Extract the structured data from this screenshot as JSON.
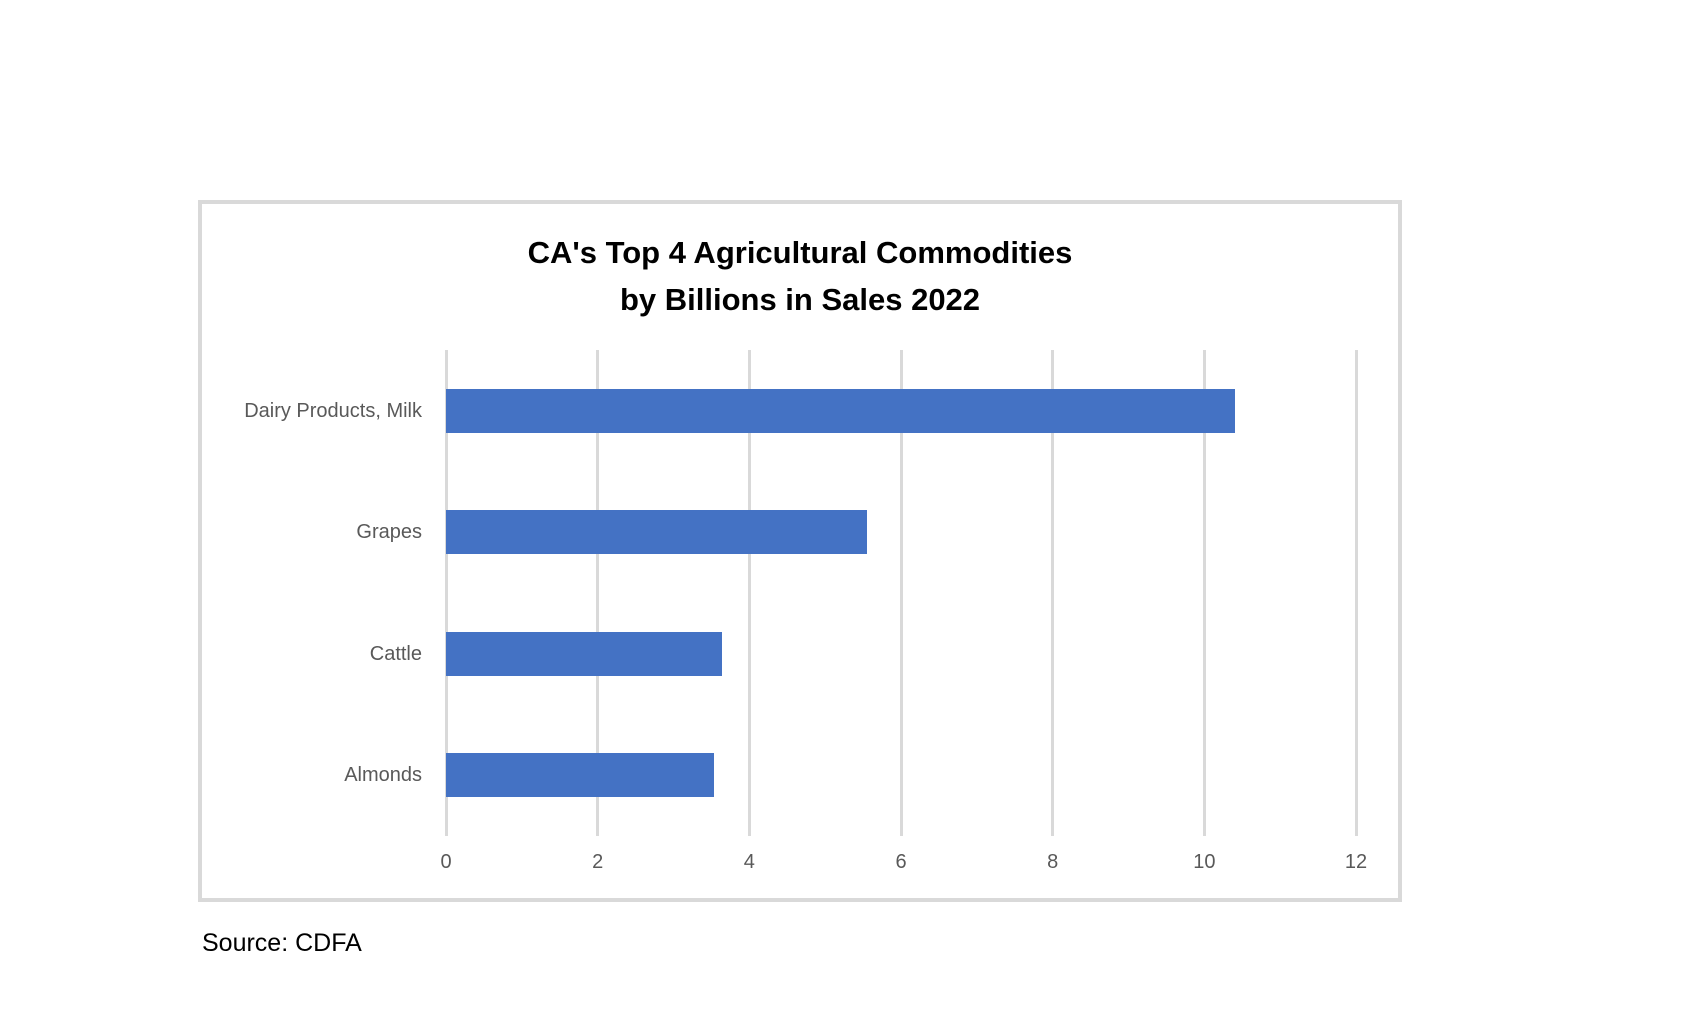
{
  "chart": {
    "title_line1": "CA's Top 4 Agricultural Commodities",
    "title_line2": "by Billions in Sales 2022",
    "bar_color": "#4472C4",
    "grid_color": "#D9D9D9",
    "categories": [
      "Dairy Products, Milk",
      "Grapes",
      "Cattle",
      "Almonds"
    ],
    "ticks": [
      "0",
      "2",
      "4",
      "6",
      "8",
      "10",
      "12"
    ]
  },
  "source": "Source: CDFA",
  "chart_data": {
    "type": "bar",
    "orientation": "horizontal",
    "title": "CA's Top 4 Agricultural Commodities by Billions in Sales 2022",
    "categories": [
      "Dairy Products, Milk",
      "Grapes",
      "Cattle",
      "Almonds"
    ],
    "values": [
      10.4,
      5.55,
      3.64,
      3.53
    ],
    "xlabel": "",
    "ylabel": "",
    "xlim": [
      0,
      12
    ],
    "x_ticks": [
      0,
      2,
      4,
      6,
      8,
      10,
      12
    ],
    "grid": "vertical gridlines on",
    "legend": "none",
    "source": "Source: CDFA"
  }
}
